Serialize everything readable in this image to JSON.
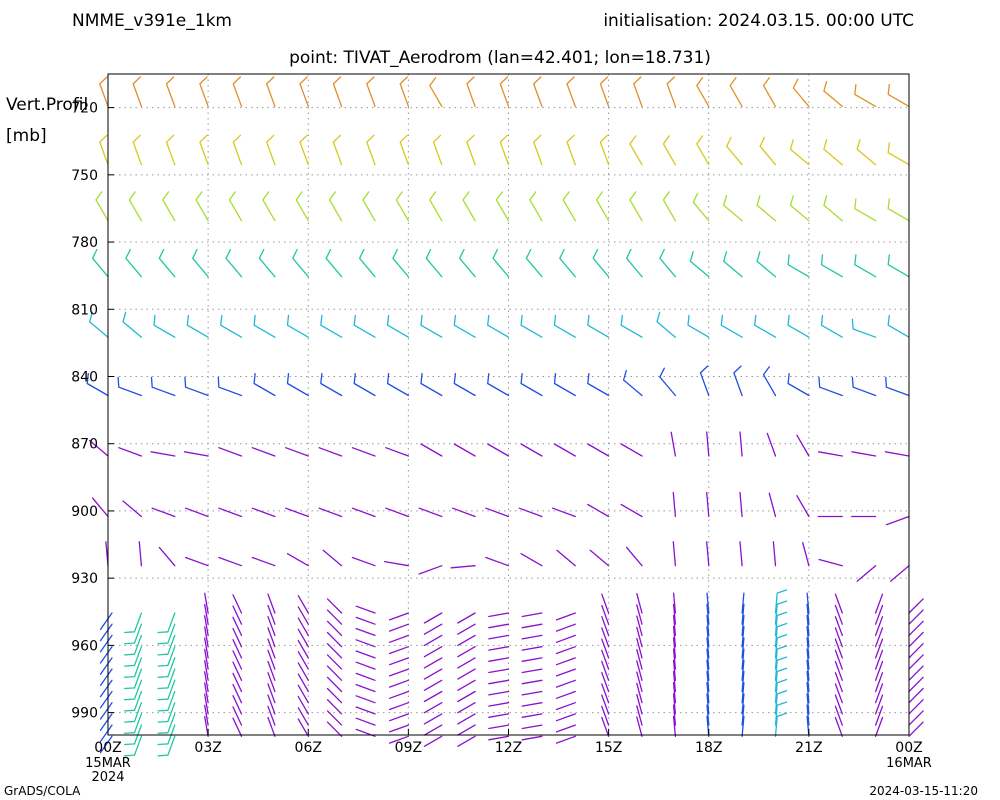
{
  "header": {
    "model": "NMME_v391e_1km",
    "initialisation": "initialisation: 2024.03.15. 00:00 UTC",
    "point": "point: TIVAT_Aerodrom (lan=42.401; lon=18.731)"
  },
  "footer": {
    "left": "GrADS/COLA",
    "right": "2024-03-15-11:20"
  },
  "chart_data": {
    "type": "wind_barbs",
    "ylabel": [
      "Vert.Profil",
      "[mb]"
    ],
    "y_ticks": [
      720,
      750,
      780,
      810,
      840,
      870,
      900,
      930,
      960,
      990
    ],
    "ylim": [
      1000,
      705
    ],
    "y_inverted": true,
    "x_ticks": [
      "00Z",
      "03Z",
      "06Z",
      "09Z",
      "12Z",
      "15Z",
      "18Z",
      "21Z",
      "00Z"
    ],
    "x_tick_hours": [
      0,
      3,
      6,
      9,
      12,
      15,
      18,
      21,
      24
    ],
    "x_date_labels": [
      {
        "hour": 0,
        "lines": [
          "15MAR",
          "2024"
        ]
      },
      {
        "hour": 24,
        "lines": [
          "16MAR"
        ]
      }
    ],
    "xlim_hours": [
      0,
      24
    ],
    "time_step_hours": 1,
    "grid": true,
    "colors": {
      "orange": "#e0902a",
      "red": "#e83030",
      "yellow": "#d8c81e",
      "yellowgreen": "#a8dc30",
      "green": "#28c828",
      "teal": "#20c8a0",
      "cyan": "#20b8d8",
      "blue": "#2050e0",
      "purple": "#8a10d0"
    },
    "upper_levels": [
      {
        "p": 715,
        "c": "orange",
        "dir": [
          340,
          340,
          340,
          340,
          340,
          340,
          340,
          340,
          340,
          340,
          330,
          340,
          340,
          340,
          340,
          340,
          340,
          340,
          330,
          330,
          330,
          320,
          310,
          300,
          300
        ]
      },
      {
        "p": 741,
        "c": "yellow",
        "dir": [
          340,
          340,
          340,
          340,
          340,
          340,
          340,
          340,
          340,
          340,
          340,
          340,
          340,
          340,
          340,
          340,
          330,
          330,
          330,
          320,
          320,
          310,
          310,
          310,
          300
        ]
      },
      {
        "p": 766,
        "c": "yellowgreen",
        "dir": [
          330,
          330,
          330,
          330,
          330,
          330,
          330,
          330,
          330,
          330,
          330,
          330,
          330,
          330,
          330,
          330,
          330,
          330,
          320,
          310,
          310,
          310,
          310,
          300,
          300
        ]
      },
      {
        "p": 791,
        "c": "teal",
        "dir": [
          320,
          320,
          320,
          320,
          320,
          320,
          320,
          320,
          320,
          320,
          320,
          320,
          320,
          320,
          320,
          320,
          320,
          320,
          310,
          310,
          310,
          300,
          300,
          300,
          300
        ]
      },
      {
        "p": 818,
        "c": "cyan",
        "dir": [
          310,
          310,
          300,
          300,
          300,
          300,
          300,
          300,
          300,
          300,
          300,
          300,
          300,
          300,
          300,
          300,
          300,
          310,
          300,
          300,
          300,
          300,
          300,
          290,
          300
        ]
      },
      {
        "p": 844,
        "c": "blue",
        "dir": [
          300,
          290,
          290,
          290,
          290,
          300,
          300,
          300,
          300,
          300,
          300,
          300,
          300,
          300,
          300,
          300,
          310,
          320,
          340,
          340,
          330,
          300,
          290,
          290,
          290
        ]
      },
      {
        "p": 871,
        "c": "purple",
        "dir": [
          310,
          290,
          280,
          280,
          290,
          290,
          290,
          290,
          290,
          290,
          300,
          300,
          300,
          300,
          300,
          300,
          300,
          350,
          355,
          355,
          340,
          330,
          280,
          280,
          280
        ]
      },
      {
        "p": 898,
        "c": "purple",
        "dir": [
          320,
          310,
          290,
          290,
          290,
          290,
          290,
          290,
          290,
          290,
          290,
          290,
          290,
          290,
          290,
          300,
          300,
          355,
          355,
          355,
          345,
          330,
          270,
          270,
          250
        ]
      },
      {
        "p": 920,
        "c": "purple",
        "dir": [
          355,
          355,
          320,
          290,
          290,
          290,
          300,
          310,
          290,
          280,
          250,
          265,
          290,
          300,
          310,
          310,
          320,
          355,
          355,
          355,
          355,
          345,
          285,
          230,
          230
        ]
      }
    ],
    "low_levels": {
      "p_top": 942,
      "p_bottom": 999,
      "hours": [
        {
          "c": "blue",
          "dir": 215
        },
        {
          "c": "teal",
          "dir": 200
        },
        {
          "c": "teal",
          "dir": 200
        },
        {
          "c": "purple",
          "dir": 350
        },
        {
          "c": "purple",
          "dir": 335
        },
        {
          "c": "purple",
          "dir": 340
        },
        {
          "c": "purple",
          "dir": 330
        },
        {
          "c": "purple",
          "dir": 315
        },
        {
          "c": "purple",
          "dir": 290
        },
        {
          "c": "purple",
          "dir": 250
        },
        {
          "c": "purple",
          "dir": 240
        },
        {
          "c": "purple",
          "dir": 240
        },
        {
          "c": "purple",
          "dir": 260
        },
        {
          "c": "purple",
          "dir": 260
        },
        {
          "c": "purple",
          "dir": 250
        },
        {
          "c": "purple",
          "dir": 340
        },
        {
          "c": "purple",
          "dir": 345
        },
        {
          "c": "purple",
          "dir": 355
        },
        {
          "c": "blue",
          "dir": 355
        },
        {
          "c": "blue",
          "dir": 5
        },
        {
          "c": "cyan",
          "dir": 5
        },
        {
          "c": "blue",
          "dir": 355
        },
        {
          "c": "purple",
          "dir": 340
        },
        {
          "c": "purple",
          "dir": 20
        },
        {
          "c": "purple",
          "dir": 45
        }
      ]
    }
  }
}
